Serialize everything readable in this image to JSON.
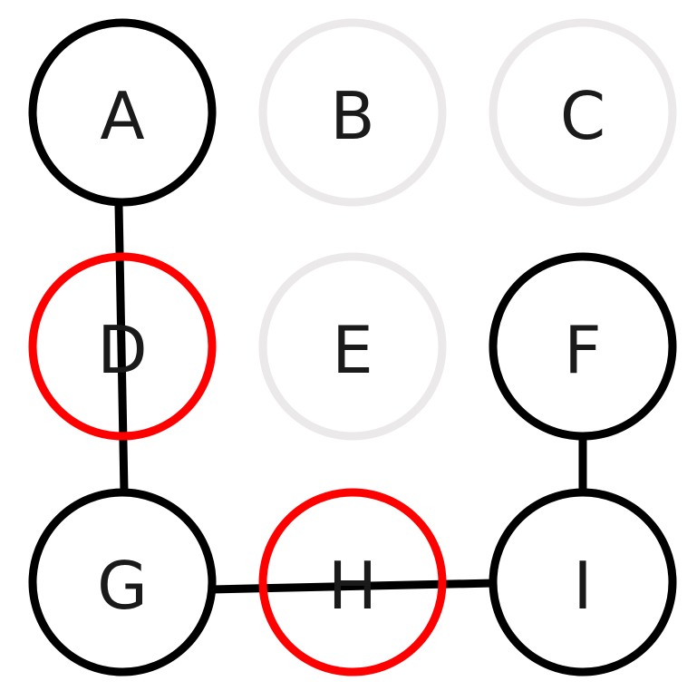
{
  "diagram": {
    "nodes": [
      {
        "id": "A",
        "label": "A",
        "state": "active"
      },
      {
        "id": "B",
        "label": "B",
        "state": "inactive"
      },
      {
        "id": "C",
        "label": "C",
        "state": "inactive"
      },
      {
        "id": "D",
        "label": "D",
        "state": "highlighted"
      },
      {
        "id": "E",
        "label": "E",
        "state": "inactive"
      },
      {
        "id": "F",
        "label": "F",
        "state": "active"
      },
      {
        "id": "G",
        "label": "G",
        "state": "active"
      },
      {
        "id": "H",
        "label": "H",
        "state": "highlighted"
      },
      {
        "id": "I",
        "label": "I",
        "state": "active"
      }
    ],
    "edges": [
      {
        "from": "A",
        "to": "G"
      },
      {
        "from": "G",
        "to": "I"
      },
      {
        "from": "F",
        "to": "I"
      }
    ],
    "colors": {
      "active": "#000000",
      "highlighted": "#ff0000",
      "inactive": "#ece9ea",
      "edge": "#000000",
      "text": "#1a1a1a"
    }
  }
}
